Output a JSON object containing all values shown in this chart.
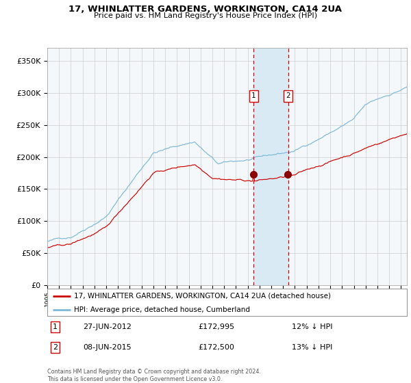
{
  "title": "17, WHINLATTER GARDENS, WORKINGTON, CA14 2UA",
  "subtitle": "Price paid vs. HM Land Registry's House Price Index (HPI)",
  "legend_line1": "17, WHINLATTER GARDENS, WORKINGTON, CA14 2UA (detached house)",
  "legend_line2": "HPI: Average price, detached house, Cumberland",
  "event1_date": "27-JUN-2012",
  "event1_price": "£172,995",
  "event1_hpi": "12% ↓ HPI",
  "event2_date": "08-JUN-2015",
  "event2_price": "£172,500",
  "event2_hpi": "13% ↓ HPI",
  "event1_year": 2012.5,
  "event2_year": 2015.45,
  "hpi_color": "#7db8d8",
  "price_color": "#cc0000",
  "dot_color": "#8b0000",
  "vline_color": "#cc0000",
  "shade_color": "#daeaf5",
  "grid_color": "#cccccc",
  "bg_color": "#f5f8fb",
  "ylim": [
    0,
    370000
  ],
  "xlim_start": 1995.0,
  "xlim_end": 2025.5,
  "footer": "Contains HM Land Registry data © Crown copyright and database right 2024.\nThis data is licensed under the Open Government Licence v3.0."
}
